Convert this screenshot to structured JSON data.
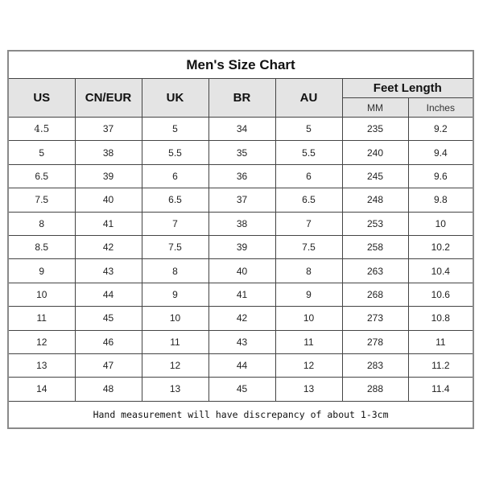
{
  "title": "Men's Size Chart",
  "headers": {
    "us": "US",
    "cn_eur": "CN/EUR",
    "uk": "UK",
    "br": "BR",
    "au": "AU",
    "feet_length": "Feet Length",
    "mm": "MM",
    "inches": "Inches"
  },
  "rows": [
    [
      "4.5",
      "37",
      "5",
      "34",
      "5",
      "235",
      "9.2"
    ],
    [
      "5",
      "38",
      "5.5",
      "35",
      "5.5",
      "240",
      "9.4"
    ],
    [
      "6.5",
      "39",
      "6",
      "36",
      "6",
      "245",
      "9.6"
    ],
    [
      "7.5",
      "40",
      "6.5",
      "37",
      "6.5",
      "248",
      "9.8"
    ],
    [
      "8",
      "41",
      "7",
      "38",
      "7",
      "253",
      "10"
    ],
    [
      "8.5",
      "42",
      "7.5",
      "39",
      "7.5",
      "258",
      "10.2"
    ],
    [
      "9",
      "43",
      "8",
      "40",
      "8",
      "263",
      "10.4"
    ],
    [
      "10",
      "44",
      "9",
      "41",
      "9",
      "268",
      "10.6"
    ],
    [
      "11",
      "45",
      "10",
      "42",
      "10",
      "273",
      "10.8"
    ],
    [
      "12",
      "46",
      "11",
      "43",
      "11",
      "278",
      "11"
    ],
    [
      "13",
      "47",
      "12",
      "44",
      "12",
      "283",
      "11.2"
    ],
    [
      "14",
      "48",
      "13",
      "45",
      "13",
      "288",
      "11.4"
    ]
  ],
  "footer": "Hand measurement will have discrepancy of about 1-3cm"
}
